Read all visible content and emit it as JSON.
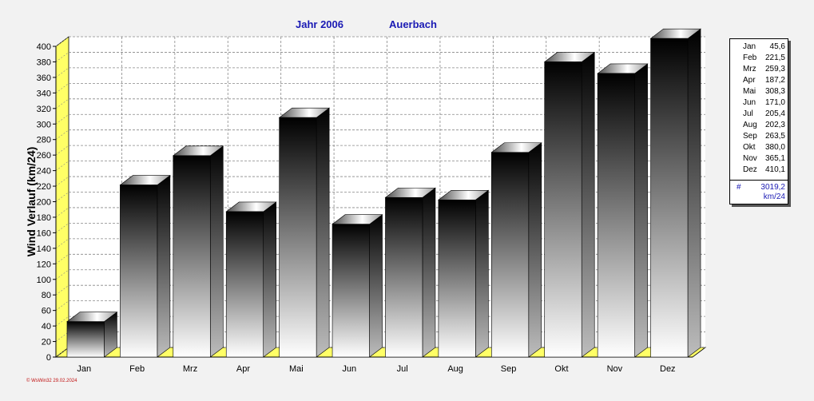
{
  "header": {
    "year_label": "Jahr  2006",
    "station": "Auerbach"
  },
  "chart_data": {
    "type": "bar",
    "title": "Jahr  2006",
    "subtitle": "Auerbach",
    "ylabel": "Wind Verlauf  (km/24)",
    "xlabel": "",
    "ylim": [
      0,
      400
    ],
    "ytick_step": 20,
    "grid": true,
    "legend_position": "right",
    "categories": [
      "Jan",
      "Feb",
      "Mrz",
      "Apr",
      "Mai",
      "Jun",
      "Jul",
      "Aug",
      "Sep",
      "Okt",
      "Nov",
      "Dez"
    ],
    "values": [
      45.6,
      221.5,
      259.3,
      187.2,
      308.3,
      171.0,
      205.4,
      202.3,
      263.5,
      380.0,
      365.1,
      410.1
    ]
  },
  "legend": {
    "items": [
      {
        "month": "Jan",
        "value": "45,6"
      },
      {
        "month": "Feb",
        "value": "221,5"
      },
      {
        "month": "Mrz",
        "value": "259,3"
      },
      {
        "month": "Apr",
        "value": "187,2"
      },
      {
        "month": "Mai",
        "value": "308,3"
      },
      {
        "month": "Jun",
        "value": "171,0"
      },
      {
        "month": "Jul",
        "value": "205,4"
      },
      {
        "month": "Aug",
        "value": "202,3"
      },
      {
        "month": "Sep",
        "value": "263,5"
      },
      {
        "month": "Okt",
        "value": "380,0"
      },
      {
        "month": "Nov",
        "value": "365,1"
      },
      {
        "month": "Dez",
        "value": "410,1"
      }
    ],
    "total_symbol": "#",
    "total_value": "3019,2",
    "total_unit": "km/24"
  },
  "footer": {
    "text": "© WsWin32  29.02.2024"
  },
  "colors": {
    "axis_wall": "#ffff66",
    "grid": "#888888",
    "title": "#1a1ab4",
    "footer": "#c01010"
  }
}
